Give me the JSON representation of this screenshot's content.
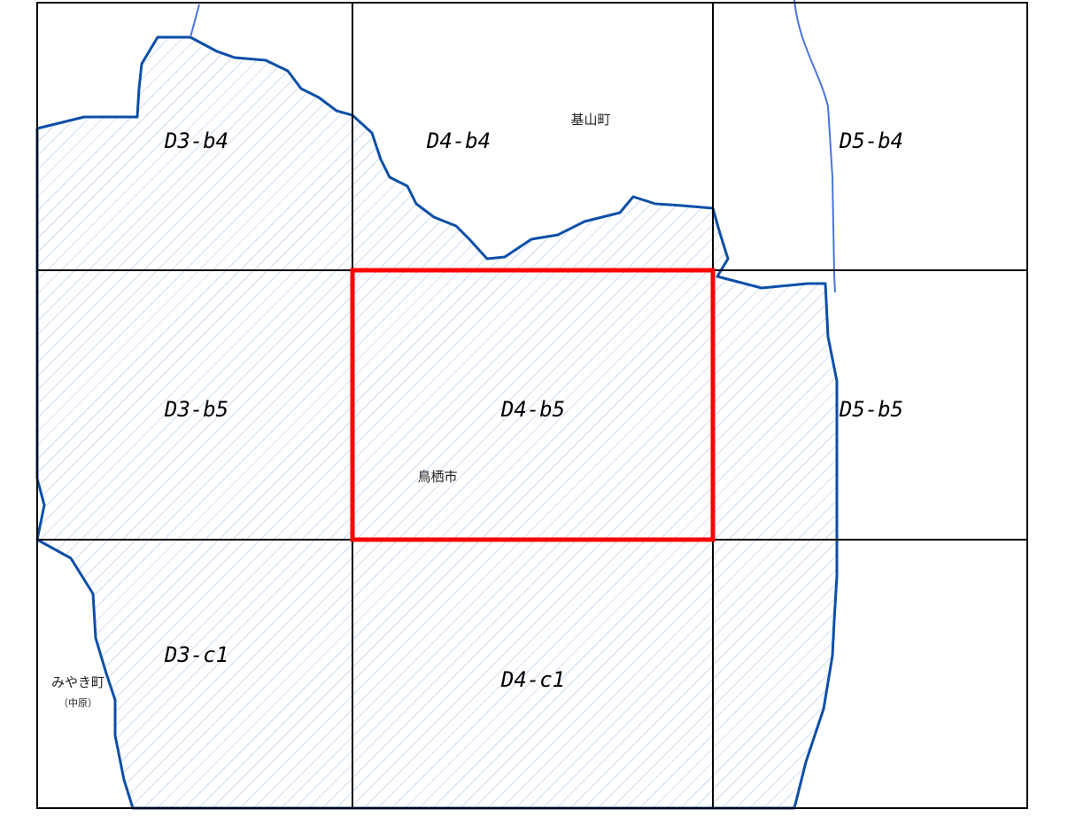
{
  "cells": [
    {
      "label": "D3-b4"
    },
    {
      "label": "D4-b4"
    },
    {
      "label": "D5-b4"
    },
    {
      "label": "D3-b5"
    },
    {
      "label": "D4-b5",
      "highlighted": true
    },
    {
      "label": "D5-b5"
    },
    {
      "label": "D3-c1"
    },
    {
      "label": "D4-c1"
    },
    {
      "label": ""
    }
  ],
  "places": [
    {
      "name": "基山町"
    },
    {
      "name": "鳥栖市"
    },
    {
      "name": "みやき町"
    },
    {
      "name": "（中原）"
    }
  ]
}
